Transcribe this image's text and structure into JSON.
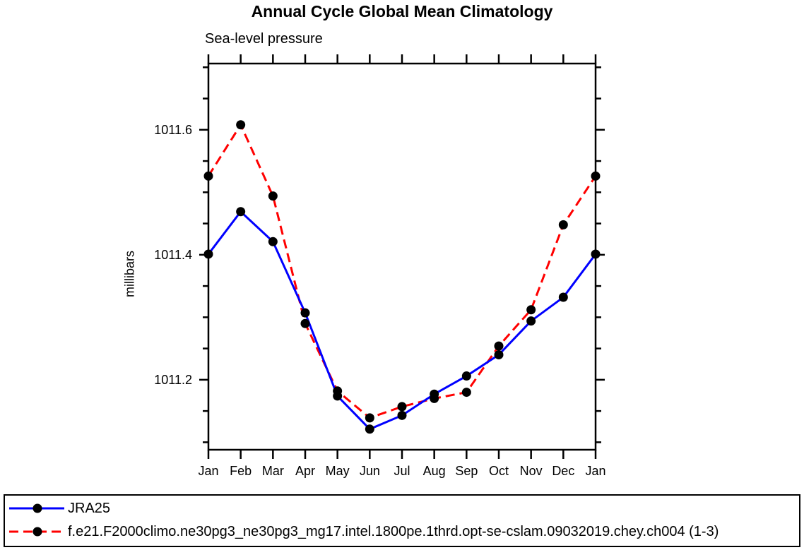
{
  "chart_data": {
    "type": "line",
    "title": "Annual Cycle Global Mean Climatology",
    "subtitle": "Sea-level pressure",
    "ylabel": "millibars",
    "xlabel": "",
    "x_categories": [
      "Jan",
      "Feb",
      "Mar",
      "Apr",
      "May",
      "Jun",
      "Jul",
      "Aug",
      "Sep",
      "Oct",
      "Nov",
      "Dec",
      "Jan"
    ],
    "y_axis": {
      "min": 1011.088,
      "max": 1011.706,
      "major_ticks": [
        1011.2,
        1011.4,
        1011.6
      ],
      "major_tick_labels": [
        "1011.2",
        "1011.4",
        "1011.6"
      ],
      "minor_tick_step": 0.05,
      "grid": false
    },
    "frame": "closed box, ticks outward on all four sides",
    "legend_position": "bottom full-width box",
    "colors": {
      "axis": "#000000",
      "marker": "#000000",
      "series1": "#0000ff",
      "series2": "#ff0000"
    },
    "series": [
      {
        "name": "JRA25",
        "color": "#0000ff",
        "line_style": "solid",
        "marker": "filled-circle",
        "marker_color": "#000000",
        "values": [
          1011.401,
          1011.469,
          1011.421,
          1011.307,
          1011.174,
          1011.121,
          1011.143,
          1011.177,
          1011.206,
          1011.24,
          1011.294,
          1011.332,
          1011.401
        ]
      },
      {
        "name": "f.e21.F2000climo.ne30pg3_ne30pg3_mg17.intel.1800pe.1thrd.opt-se-cslam.09032019.chey.ch004 (1-3)",
        "color": "#ff0000",
        "line_style": "dashed",
        "marker": "filled-circle",
        "marker_color": "#000000",
        "values": [
          1011.526,
          1011.608,
          1011.494,
          1011.29,
          1011.182,
          1011.139,
          1011.157,
          1011.17,
          1011.18,
          1011.254,
          1011.312,
          1011.448,
          1011.526
        ]
      }
    ]
  }
}
